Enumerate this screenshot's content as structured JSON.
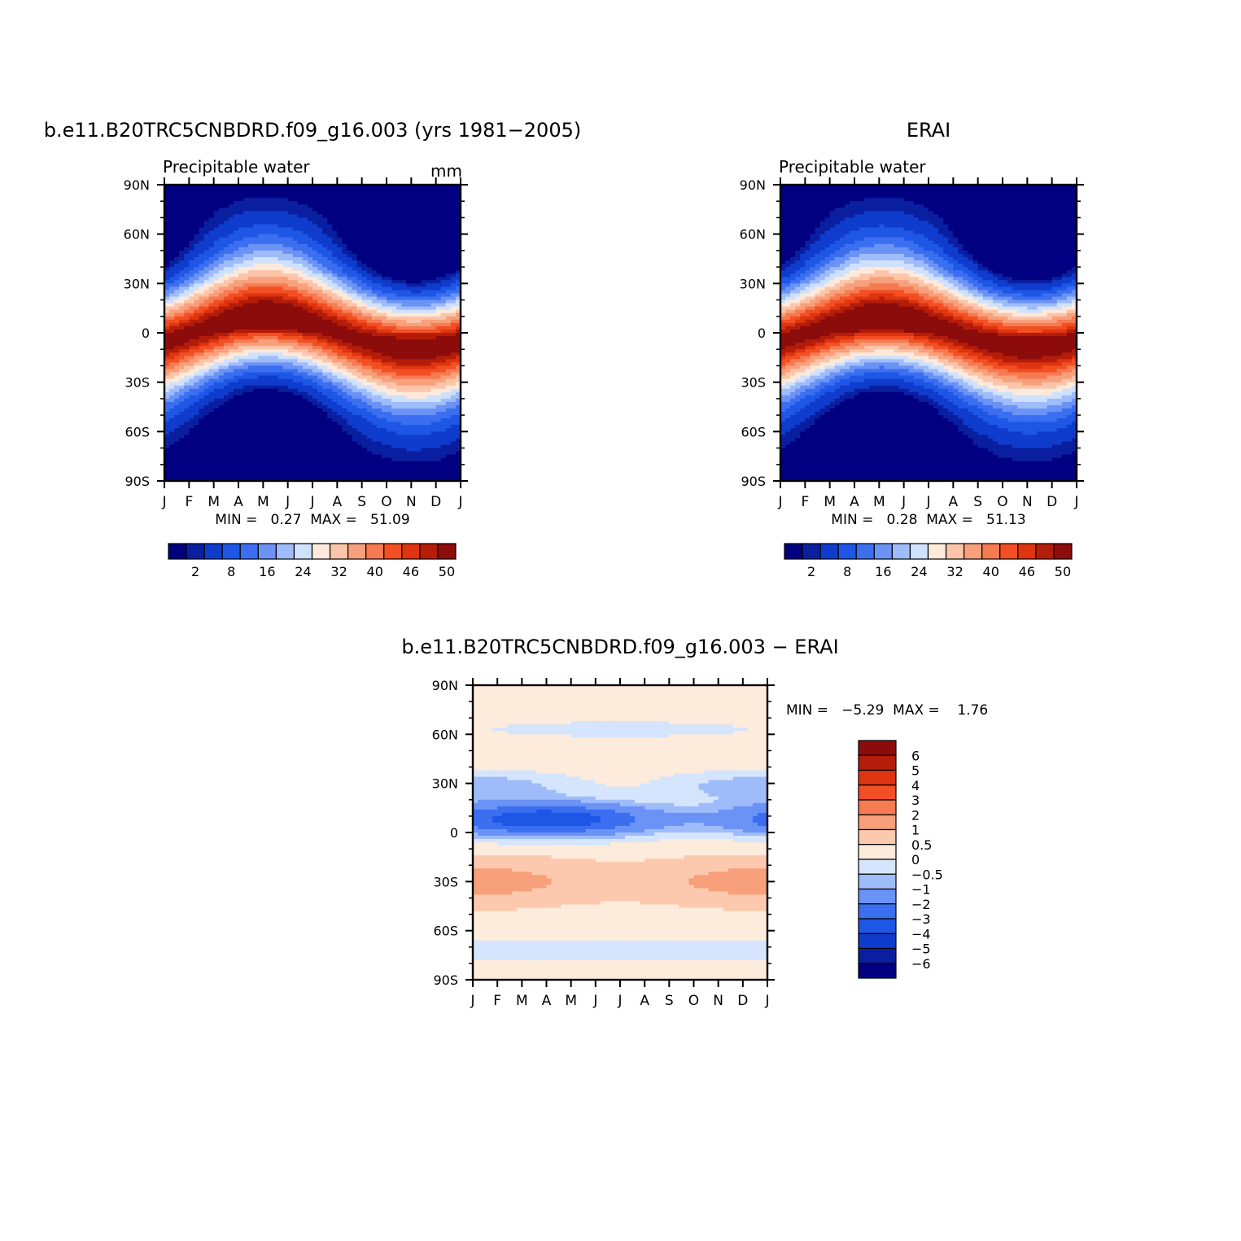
{
  "colors": {
    "main_scale": [
      "#000080",
      "#0a1fa0",
      "#0f3ccc",
      "#1e56e6",
      "#3b6ff0",
      "#6b93f5",
      "#9fbcfa",
      "#cfe1fd",
      "#fdeadb",
      "#fcc5aa",
      "#f8a07b",
      "#f67a52",
      "#f24f23",
      "#de3410",
      "#b41d0a",
      "#8c0c0c"
    ],
    "diff_scale": [
      "#000080",
      "#0a1fa0",
      "#0f3ccc",
      "#1e56e6",
      "#3b6ff0",
      "#6b93f5",
      "#9fbcfa",
      "#d4e5fd",
      "#fdebdc",
      "#fcc9ae",
      "#f8a07b",
      "#f67a52",
      "#f24f23",
      "#de3410",
      "#b41d0a",
      "#8c0c0c"
    ]
  },
  "chart_data": [
    {
      "type": "heatmap",
      "title": "b.e11.B20TRC5CNBDRD.f09_g16.003 (yrs 1981−2005)",
      "subtitle": "Precipitable  water",
      "units": "mm",
      "x_ticks": [
        "J",
        "F",
        "M",
        "A",
        "M",
        "J",
        "J",
        "A",
        "S",
        "O",
        "N",
        "D",
        "J"
      ],
      "y_ticks": [
        "90N",
        "60N",
        "30N",
        "0",
        "30S",
        "60S",
        "90S"
      ],
      "min_label": "MIN =",
      "min_value": "0.27",
      "max_label": "MAX =",
      "max_value": "51.09",
      "colorbar_labels": [
        "2",
        "8",
        "16",
        "24",
        "32",
        "40",
        "46",
        "50"
      ],
      "field": {
        "peak": 51.09,
        "floor": 0.27,
        "itcz_amplitude": 9,
        "itcz_phase_month": 7.5
      }
    },
    {
      "type": "heatmap",
      "title": "ERAI",
      "subtitle": "Precipitable  water",
      "units": "",
      "x_ticks": [
        "J",
        "F",
        "M",
        "A",
        "M",
        "J",
        "J",
        "A",
        "S",
        "O",
        "N",
        "D",
        "J"
      ],
      "y_ticks": [
        "90N",
        "60N",
        "30N",
        "0",
        "30S",
        "60S",
        "90S"
      ],
      "min_label": "MIN =",
      "min_value": "0.28",
      "max_label": "MAX =",
      "max_value": "51.13",
      "colorbar_labels": [
        "2",
        "8",
        "16",
        "24",
        "32",
        "40",
        "46",
        "50"
      ],
      "field": {
        "peak": 51.13,
        "floor": 0.28,
        "itcz_amplitude": 8,
        "itcz_phase_month": 7.5
      }
    },
    {
      "type": "heatmap",
      "title": "b.e11.B20TRC5CNBDRD.f09_g16.003 − ERAI",
      "x_ticks": [
        "J",
        "F",
        "M",
        "A",
        "M",
        "J",
        "J",
        "A",
        "S",
        "O",
        "N",
        "D",
        "J"
      ],
      "y_ticks": [
        "90N",
        "60N",
        "30N",
        "0",
        "30S",
        "60S",
        "90S"
      ],
      "min_label": "MIN =",
      "min_value": "−5.29",
      "max_label": "MAX =",
      "max_value": "1.76",
      "colorbar_labels": [
        "6",
        "5",
        "4",
        "3",
        "2",
        "1",
        "0.5",
        "0",
        "−0.5",
        "−1",
        "−2",
        "−3",
        "−4",
        "−5",
        "−6"
      ],
      "field": {
        "min": -5.29,
        "max": 1.76
      }
    }
  ]
}
